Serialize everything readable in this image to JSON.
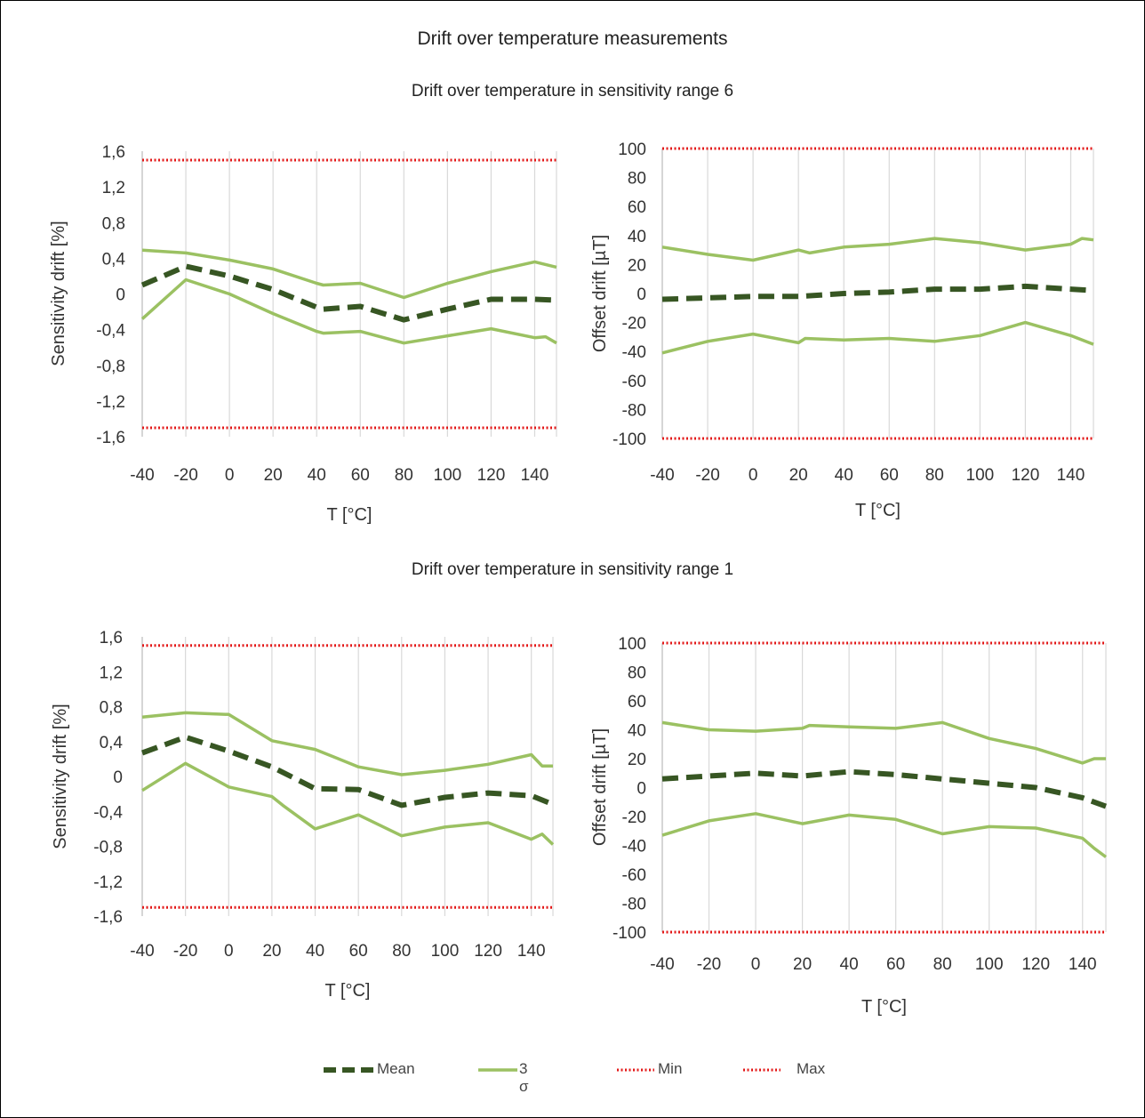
{
  "title": "Drift over temperature measurements",
  "sections": [
    {
      "title": "Drift over temperature in sensitivity range 6"
    },
    {
      "title": "Drift over temperature in sensitivity range 1"
    }
  ],
  "legend": {
    "mean": "Mean",
    "sigma": "3 σ",
    "min": "Min",
    "max": "Max"
  },
  "colors": {
    "mean": "#375623",
    "sigma": "#9bc162",
    "limit": "#e31919",
    "grid": "#d9d9d9"
  },
  "chart_data": [
    {
      "type": "line",
      "xlabel": "T [°C]",
      "ylabel": "Sensitivity drift [%]",
      "xlim": [
        -40,
        150
      ],
      "ylim": [
        -1.6,
        1.6
      ],
      "xticks": [
        "-40",
        "-20",
        "0",
        "20",
        "40",
        "60",
        "80",
        "100",
        "120",
        "140"
      ],
      "yticks": [
        "1,6",
        "1,2",
        "0,8",
        "0,4",
        "0",
        "-0,4",
        "-0,8",
        "-1,2",
        "-1,6"
      ],
      "series": [
        {
          "name": "Mean",
          "x": [
            -40,
            -20,
            0,
            20,
            40,
            43,
            60,
            80,
            100,
            120,
            140,
            150
          ],
          "y": [
            0.1,
            0.31,
            0.2,
            0.05,
            -0.15,
            -0.17,
            -0.14,
            -0.29,
            -0.17,
            -0.06,
            -0.06,
            -0.07
          ]
        },
        {
          "name": "3 σ",
          "x": [
            -40,
            -20,
            0,
            20,
            40,
            43,
            60,
            80,
            100,
            120,
            140,
            150
          ],
          "y": [
            0.49,
            0.46,
            0.38,
            0.28,
            0.12,
            0.1,
            0.12,
            -0.04,
            0.12,
            0.25,
            0.36,
            0.3
          ]
        },
        {
          "name": "3 σ",
          "x": [
            -40,
            -20,
            0,
            20,
            40,
            43,
            60,
            80,
            100,
            120,
            140,
            145,
            150
          ],
          "y": [
            -0.28,
            0.16,
            0.0,
            -0.22,
            -0.42,
            -0.44,
            -0.42,
            -0.55,
            -0.47,
            -0.39,
            -0.49,
            -0.48,
            -0.55
          ]
        },
        {
          "name": "Min",
          "x": [
            -40,
            150
          ],
          "y": [
            -1.5,
            -1.5
          ]
        },
        {
          "name": "Max",
          "x": [
            -40,
            150
          ],
          "y": [
            1.5,
            1.5
          ]
        }
      ]
    },
    {
      "type": "line",
      "xlabel": "T [°C]",
      "ylabel": "Offset drift [µT]",
      "xlim": [
        -40,
        150
      ],
      "ylim": [
        -100,
        100
      ],
      "xticks": [
        "-40",
        "-20",
        "0",
        "20",
        "40",
        "60",
        "80",
        "100",
        "120",
        "140"
      ],
      "yticks": [
        "100",
        "80",
        "60",
        "40",
        "20",
        "0",
        "-20",
        "-40",
        "-60",
        "-80",
        "-100"
      ],
      "series": [
        {
          "name": "Mean",
          "x": [
            -40,
            -20,
            0,
            20,
            40,
            60,
            80,
            100,
            120,
            140,
            150
          ],
          "y": [
            -4,
            -3,
            -2,
            -2,
            0,
            1,
            3,
            3,
            5,
            3,
            2
          ]
        },
        {
          "name": "3 σ",
          "x": [
            -40,
            -20,
            0,
            20,
            25,
            40,
            60,
            80,
            100,
            120,
            140,
            145,
            150
          ],
          "y": [
            32,
            27,
            23,
            30,
            28,
            32,
            34,
            38,
            35,
            30,
            34,
            38,
            37
          ]
        },
        {
          "name": "3 σ",
          "x": [
            -40,
            -20,
            0,
            20,
            23,
            40,
            60,
            80,
            100,
            120,
            140,
            150
          ],
          "y": [
            -41,
            -33,
            -28,
            -34,
            -31,
            -32,
            -31,
            -33,
            -29,
            -20,
            -29,
            -35
          ]
        },
        {
          "name": "Min",
          "x": [
            -40,
            150
          ],
          "y": [
            -100,
            -100
          ]
        },
        {
          "name": "Max",
          "x": [
            -40,
            150
          ],
          "y": [
            100,
            100
          ]
        }
      ]
    },
    {
      "type": "line",
      "xlabel": "T [°C]",
      "ylabel": "Sensitivity drift [%]",
      "xlim": [
        -40,
        150
      ],
      "ylim": [
        -1.6,
        1.6
      ],
      "xticks": [
        "-40",
        "-20",
        "0",
        "20",
        "40",
        "60",
        "80",
        "100",
        "120",
        "140"
      ],
      "yticks": [
        "1,6",
        "1,2",
        "0,8",
        "0,4",
        "0",
        "-0,4",
        "-0,8",
        "-1,2",
        "-1,6"
      ],
      "series": [
        {
          "name": "Mean",
          "x": [
            -40,
            -20,
            0,
            20,
            40,
            60,
            80,
            100,
            120,
            140,
            150
          ],
          "y": [
            0.27,
            0.45,
            0.29,
            0.11,
            -0.14,
            -0.15,
            -0.33,
            -0.24,
            -0.19,
            -0.22,
            -0.32
          ]
        },
        {
          "name": "3 σ",
          "x": [
            -40,
            -20,
            0,
            20,
            40,
            60,
            80,
            100,
            120,
            140,
            145,
            150
          ],
          "y": [
            0.68,
            0.73,
            0.71,
            0.41,
            0.31,
            0.11,
            0.02,
            0.07,
            0.14,
            0.25,
            0.12,
            0.12
          ]
        },
        {
          "name": "3 σ",
          "x": [
            -40,
            -20,
            0,
            20,
            25,
            40,
            60,
            80,
            100,
            120,
            140,
            145,
            150
          ],
          "y": [
            -0.16,
            0.15,
            -0.12,
            -0.23,
            -0.33,
            -0.6,
            -0.44,
            -0.68,
            -0.58,
            -0.53,
            -0.72,
            -0.66,
            -0.78
          ]
        },
        {
          "name": "Min",
          "x": [
            -40,
            150
          ],
          "y": [
            -1.5,
            -1.5
          ]
        },
        {
          "name": "Max",
          "x": [
            -40,
            150
          ],
          "y": [
            1.5,
            1.5
          ]
        }
      ]
    },
    {
      "type": "line",
      "xlabel": "T [°C]",
      "ylabel": "Offset drift [µT]",
      "xlim": [
        -40,
        150
      ],
      "ylim": [
        -100,
        100
      ],
      "xticks": [
        "-40",
        "-20",
        "0",
        "20",
        "40",
        "60",
        "80",
        "100",
        "120",
        "140"
      ],
      "yticks": [
        "100",
        "80",
        "60",
        "40",
        "20",
        "0",
        "-20",
        "-40",
        "-60",
        "-80",
        "-100"
      ],
      "series": [
        {
          "name": "Mean",
          "x": [
            -40,
            -20,
            0,
            20,
            40,
            60,
            80,
            100,
            120,
            140,
            150
          ],
          "y": [
            6,
            8,
            10,
            8,
            11,
            9,
            6,
            3,
            0,
            -7,
            -13
          ]
        },
        {
          "name": "3 σ",
          "x": [
            -40,
            -20,
            0,
            20,
            23,
            40,
            60,
            80,
            100,
            120,
            140,
            145,
            150
          ],
          "y": [
            45,
            40,
            39,
            41,
            43,
            42,
            41,
            45,
            34,
            27,
            17,
            20,
            20
          ]
        },
        {
          "name": "3 σ",
          "x": [
            -40,
            -20,
            0,
            20,
            40,
            60,
            80,
            100,
            120,
            140,
            145,
            150
          ],
          "y": [
            -33,
            -23,
            -18,
            -25,
            -19,
            -22,
            -32,
            -27,
            -28,
            -35,
            -42,
            -48
          ]
        },
        {
          "name": "Min",
          "x": [
            -40,
            150
          ],
          "y": [
            -100,
            -100
          ]
        },
        {
          "name": "Max",
          "x": [
            -40,
            150
          ],
          "y": [
            100,
            100
          ]
        }
      ]
    }
  ]
}
